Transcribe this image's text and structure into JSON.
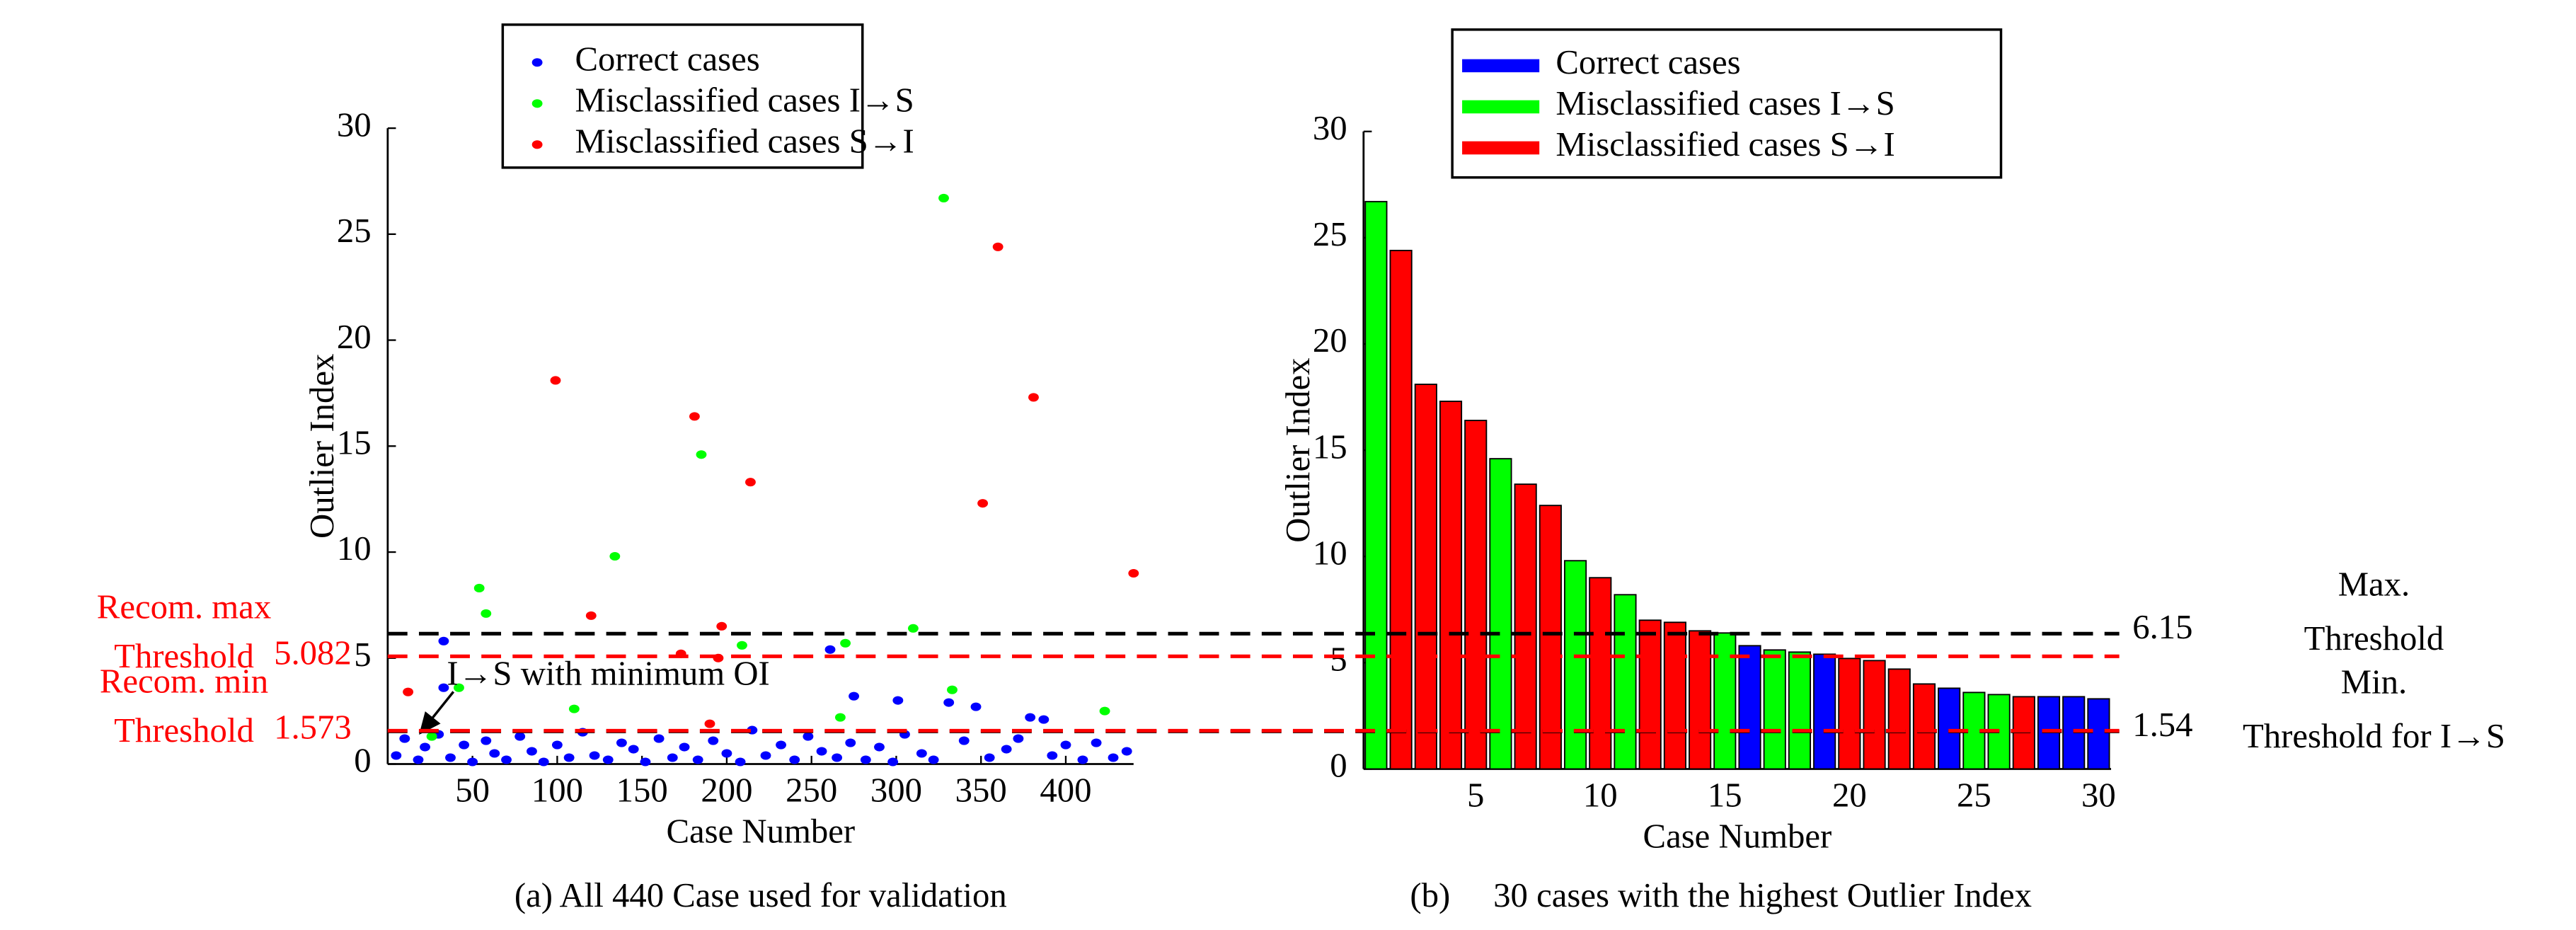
{
  "chart_data": [
    {
      "type": "scatter",
      "title": "(a) All 440 Case used for validation",
      "xlabel": "Case Number",
      "ylabel": "Outlier Index",
      "xlim": [
        0,
        440
      ],
      "ylim": [
        0,
        30
      ],
      "xticks": [
        50,
        100,
        150,
        200,
        250,
        300,
        350,
        400
      ],
      "yticks": [
        0,
        5,
        10,
        15,
        20,
        25,
        30
      ],
      "series": [
        {
          "name": "Correct cases",
          "color": "#0000ff",
          "x": [
            5,
            10,
            18,
            22,
            30,
            37,
            45,
            50,
            58,
            63,
            70,
            78,
            85,
            92,
            100,
            107,
            115,
            122,
            130,
            138,
            145,
            152,
            160,
            168,
            175,
            183,
            192,
            200,
            208,
            215,
            223,
            232,
            240,
            248,
            256,
            265,
            273,
            282,
            290,
            298,
            305,
            315,
            322,
            340,
            355,
            365,
            372,
            392,
            400,
            410,
            418,
            428,
            436,
            33,
            33,
            261,
            275,
            301,
            347,
            331,
            379,
            387
          ],
          "values": [
            0.4,
            1.2,
            0.2,
            0.8,
            1.4,
            0.3,
            0.9,
            0.1,
            1.1,
            0.5,
            0.2,
            1.3,
            0.6,
            0.1,
            0.9,
            0.3,
            1.5,
            0.4,
            0.2,
            1.0,
            0.7,
            0.1,
            1.2,
            0.3,
            0.8,
            0.2,
            1.1,
            0.5,
            0.1,
            1.6,
            0.4,
            0.9,
            0.2,
            1.3,
            0.6,
            0.3,
            1.0,
            0.2,
            0.8,
            0.1,
            1.4,
            0.5,
            0.2,
            1.1,
            0.3,
            0.7,
            1.2,
            0.4,
            0.9,
            0.2,
            1.0,
            0.3,
            0.6,
            5.8,
            3.6,
            5.4,
            3.2,
            3.0,
            2.7,
            2.9,
            2.2,
            2.1
          ]
        },
        {
          "name": "Misclassified cases I→S",
          "color": "#00ff00",
          "x": [
            54,
            58,
            134,
            185,
            328,
            110,
            42,
            26,
            209,
            267,
            270,
            310,
            333,
            423
          ],
          "values": [
            8.3,
            7.1,
            9.8,
            14.6,
            26.7,
            2.6,
            3.6,
            1.3,
            5.6,
            2.2,
            5.7,
            6.4,
            3.5,
            2.5
          ]
        },
        {
          "name": "Misclassified cases S→I",
          "color": "#ff0000",
          "x": [
            12,
            99,
            120,
            181,
            214,
            197,
            190,
            173,
            195,
            360,
            351,
            381,
            440
          ],
          "values": [
            3.4,
            18.1,
            7.0,
            16.4,
            13.3,
            6.5,
            1.9,
            5.2,
            5.0,
            24.4,
            12.3,
            17.3,
            9.0
          ]
        }
      ],
      "annotation": "I→S with minimum OI"
    },
    {
      "type": "bar",
      "title": "(b)     30 cases with the highest Outlier Index",
      "xlabel": "Case Number",
      "ylabel": "Outlier Index",
      "xlim": [
        0.5,
        30.5
      ],
      "ylim": [
        0,
        30
      ],
      "xticks": [
        5,
        10,
        15,
        20,
        25,
        30
      ],
      "yticks": [
        0,
        5,
        10,
        15,
        20,
        25,
        30
      ],
      "categories": [
        1,
        2,
        3,
        4,
        5,
        6,
        7,
        8,
        9,
        10,
        11,
        12,
        13,
        14,
        15,
        16,
        17,
        18,
        19,
        20,
        21,
        22,
        23,
        24,
        25,
        26,
        27,
        28,
        29,
        30
      ],
      "series": [
        {
          "name": "Correct cases",
          "color": "#0000ff",
          "values": [
            null,
            null,
            null,
            null,
            null,
            null,
            null,
            null,
            null,
            null,
            null,
            null,
            null,
            null,
            null,
            5.8,
            null,
            null,
            5.4,
            null,
            null,
            null,
            null,
            3.8,
            null,
            null,
            null,
            3.4,
            3.4,
            3.3
          ]
        },
        {
          "name": "Misclassified cases I→S",
          "color": "#00ff00",
          "values": [
            26.7,
            null,
            null,
            null,
            null,
            14.6,
            null,
            null,
            9.8,
            null,
            8.2,
            null,
            null,
            null,
            6.4,
            null,
            5.6,
            5.5,
            null,
            null,
            null,
            null,
            null,
            null,
            3.6,
            3.5,
            null,
            null,
            null,
            null
          ]
        },
        {
          "name": "Misclassified cases S→I",
          "color": "#ff0000",
          "values": [
            null,
            24.4,
            18.1,
            17.3,
            16.4,
            null,
            13.4,
            12.4,
            null,
            9.0,
            null,
            7.0,
            6.9,
            6.5,
            null,
            null,
            null,
            null,
            null,
            5.2,
            5.1,
            4.7,
            4.0,
            null,
            null,
            null,
            3.4,
            null,
            null,
            null
          ]
        }
      ]
    }
  ],
  "thresholds": [
    {
      "value": 6.15,
      "color": "#000000",
      "text": [
        "Max.",
        "Threshold"
      ]
    },
    {
      "value": 1.54,
      "color": "#000000",
      "text": [
        "Min.",
        "Threshold for I→S"
      ]
    },
    {
      "value": 5.082,
      "color": "#ff0000",
      "text": [
        "Recom. max",
        "Threshold"
      ]
    },
    {
      "value": 1.573,
      "color": "#ff0000",
      "text": [
        "Recom. min",
        "Threshold"
      ]
    }
  ]
}
